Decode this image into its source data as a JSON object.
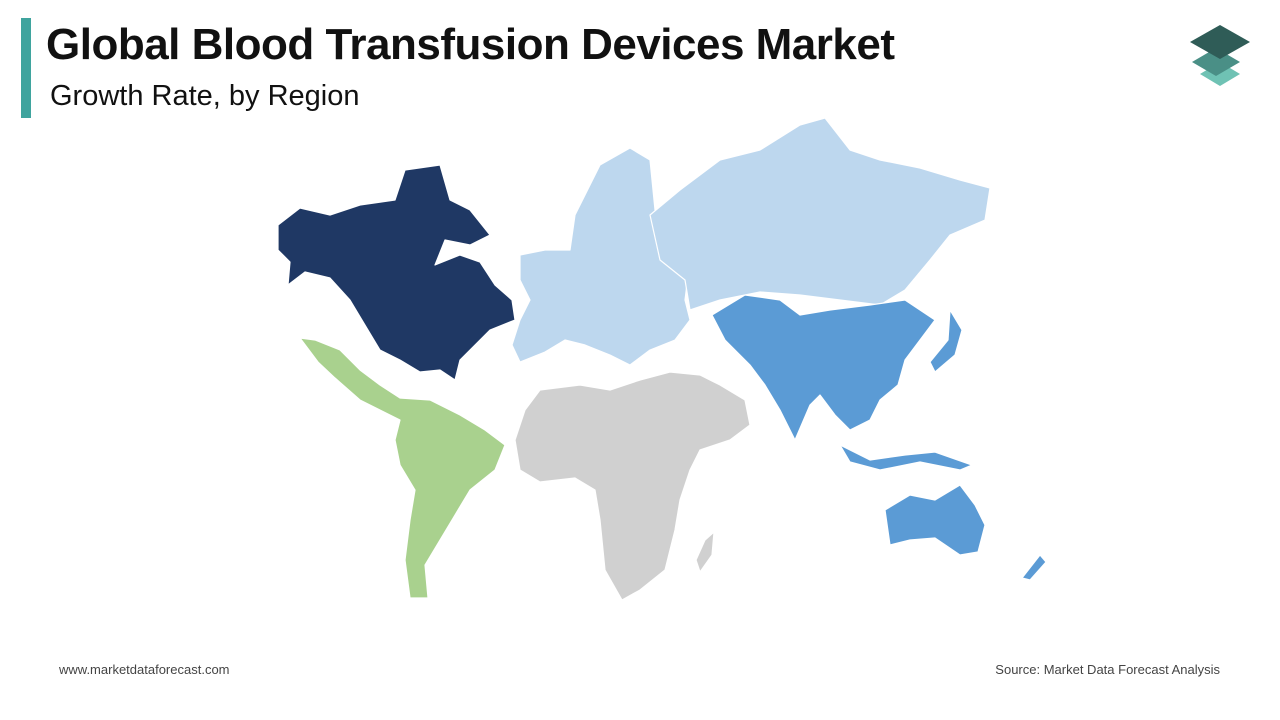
{
  "header": {
    "title": "Global Blood Transfusion Devices Market",
    "subtitle": "Growth Rate, by Region"
  },
  "footer": {
    "website": "www.marketdataforecast.com",
    "source": "Source: Market Data Forecast Analysis"
  }
}
